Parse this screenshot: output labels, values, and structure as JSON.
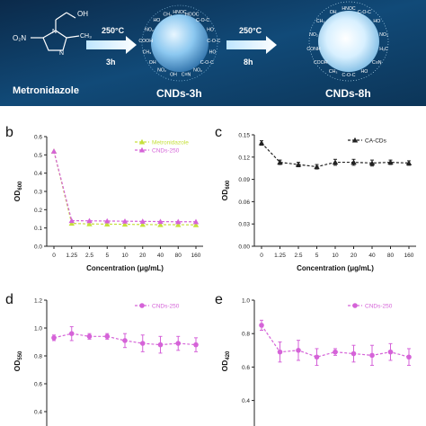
{
  "banner": {
    "arrow1": {
      "temp": "250°C",
      "time": "3h"
    },
    "arrow2": {
      "temp": "250°C",
      "time": "8h"
    },
    "labels": {
      "left": "Metronidazole",
      "middle": "CNDs-3h",
      "right": "CNDs-8h"
    },
    "molecule": {
      "oh": "OH",
      "no2": "O₂N",
      "ch3": "CH₃",
      "n": "N"
    },
    "groups_mid": [
      "HNOC",
      "HOOC",
      "C-O-C",
      "HO",
      "C-O-C",
      "HO",
      "C-O-C",
      "NO₂",
      "C≡N",
      "OH",
      "NO₂",
      "OH",
      "CH₃",
      "COOH",
      "NO₂",
      "HO",
      "CH₃"
    ],
    "groups_right": [
      "HNOC",
      "C-O-C",
      "HO",
      "NO₂",
      "H₃C",
      "C≡N",
      "HO",
      "C-O-C",
      "CH₃",
      "COOH",
      "CONH",
      "NO₂",
      "CH₃",
      "OH"
    ]
  },
  "chart_data": [
    {
      "panel": "b",
      "type": "line",
      "categories": [
        "0",
        "1.25",
        "2.5",
        "5",
        "10",
        "20",
        "40",
        "80",
        "160"
      ],
      "ylabel": "OD",
      "ylabel_sub": "600",
      "xlabel": "Concentration (μg/mL)",
      "ylim": [
        0,
        0.6
      ],
      "yticks": [
        "0.0",
        "0.1",
        "0.2",
        "0.3",
        "0.4",
        "0.5",
        "0.6"
      ],
      "legend_position": "top-right",
      "series": [
        {
          "name": "Metronidazole",
          "color": "#c6e03c",
          "marker": "triangle",
          "values": [
            0.52,
            0.125,
            0.122,
            0.121,
            0.12,
            0.119,
            0.118,
            0.118,
            0.117
          ]
        },
        {
          "name": "CNDs-250",
          "color": "#d563d8",
          "marker": "triangle",
          "values": [
            0.52,
            0.14,
            0.139,
            0.138,
            0.137,
            0.136,
            0.135,
            0.134,
            0.134
          ]
        }
      ]
    },
    {
      "panel": "c",
      "type": "line",
      "categories": [
        "0",
        "1.25",
        "2.5",
        "5",
        "10",
        "20",
        "40",
        "80",
        "160"
      ],
      "ylabel": "OD",
      "ylabel_sub": "600",
      "xlabel": "Concentration (μg/mL)",
      "ylim": [
        0,
        0.15
      ],
      "yticks": [
        "0.00",
        "0.03",
        "0.06",
        "0.09",
        "0.12",
        "0.15"
      ],
      "legend_position": "top-right",
      "series": [
        {
          "name": "CA-CDs",
          "color": "#222222",
          "marker": "triangle",
          "values": [
            0.139,
            0.113,
            0.11,
            0.107,
            0.113,
            0.113,
            0.112,
            0.113,
            0.112
          ],
          "errors": [
            0.003,
            0.003,
            0.003,
            0.003,
            0.004,
            0.004,
            0.004,
            0.003,
            0.003
          ]
        }
      ]
    },
    {
      "panel": "d",
      "type": "line",
      "categories": [
        "0",
        "1.25",
        "2.5",
        "5",
        "10",
        "20",
        "40",
        "80",
        "160"
      ],
      "ylabel": "OD",
      "ylabel_sub": "550",
      "ylim": [
        0,
        1.2
      ],
      "yticks": [
        "0.0",
        "0.2",
        "0.4",
        "0.6",
        "0.8",
        "1.0",
        "1.2"
      ],
      "legend_position": "top-right",
      "series": [
        {
          "name": "CNDs-250",
          "color": "#d563d8",
          "marker": "circle",
          "values": [
            0.93,
            0.96,
            0.94,
            0.94,
            0.91,
            0.89,
            0.88,
            0.89,
            0.88
          ],
          "errors": [
            0.02,
            0.05,
            0.02,
            0.02,
            0.05,
            0.06,
            0.06,
            0.05,
            0.05
          ]
        }
      ]
    },
    {
      "panel": "e",
      "type": "line",
      "categories": [
        "0",
        "1.25",
        "2.5",
        "5",
        "10",
        "20",
        "40",
        "80",
        "160"
      ],
      "ylabel": "OD",
      "ylabel_sub": "420",
      "ylim": [
        0,
        1.0
      ],
      "yticks": [
        "0.0",
        "0.2",
        "0.4",
        "0.6",
        "0.8",
        "1.0"
      ],
      "legend_position": "top-right",
      "series": [
        {
          "name": "CNDs-250",
          "color": "#d563d8",
          "marker": "circle",
          "values": [
            0.85,
            0.69,
            0.7,
            0.66,
            0.69,
            0.68,
            0.67,
            0.69,
            0.66
          ],
          "errors": [
            0.03,
            0.06,
            0.06,
            0.05,
            0.02,
            0.05,
            0.06,
            0.05,
            0.05
          ]
        }
      ]
    }
  ],
  "panel_letters": [
    "b",
    "c",
    "d",
    "e"
  ]
}
